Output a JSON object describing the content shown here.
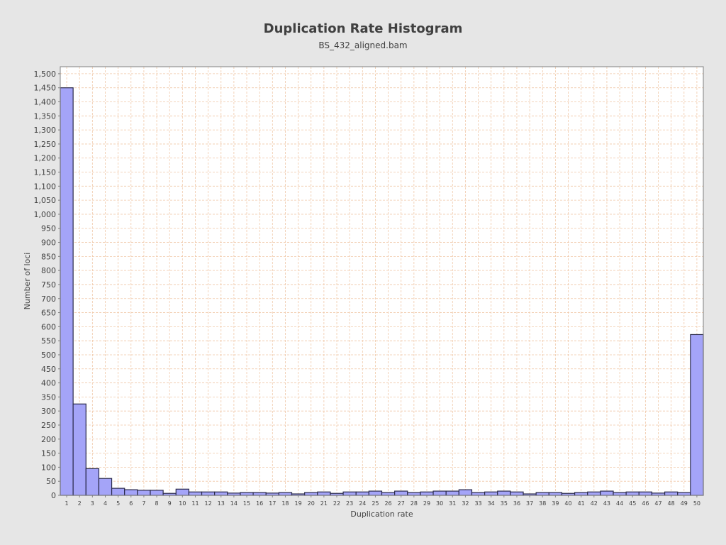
{
  "chart_data": {
    "type": "bar",
    "title": "Duplication Rate Histogram",
    "subtitle": "BS_432_aligned.bam",
    "xlabel": "Duplication rate",
    "ylabel": "Number of loci",
    "ylim": [
      0,
      1525
    ],
    "y_tick_step": 50,
    "grid": true,
    "colors": {
      "bar_fill": "#a4a4f8",
      "bar_stroke": "#2a2a4a",
      "grid": "#f0c8a8",
      "plot_background": "#ffffff",
      "page_background": "#e6e6e6"
    },
    "categories": [
      "1",
      "2",
      "3",
      "4",
      "5",
      "6",
      "7",
      "8",
      "9",
      "10",
      "11",
      "12",
      "13",
      "14",
      "15",
      "16",
      "17",
      "18",
      "19",
      "20",
      "21",
      "22",
      "23",
      "24",
      "25",
      "26",
      "27",
      "28",
      "29",
      "30",
      "31",
      "32",
      "33",
      "34",
      "35",
      "36",
      "37",
      "38",
      "39",
      "40",
      "41",
      "42",
      "43",
      "44",
      "45",
      "46",
      "47",
      "48",
      "49",
      "50"
    ],
    "values": [
      1450,
      325,
      95,
      60,
      25,
      20,
      18,
      18,
      7,
      22,
      12,
      12,
      12,
      8,
      10,
      10,
      8,
      10,
      5,
      10,
      12,
      7,
      12,
      12,
      15,
      10,
      15,
      10,
      12,
      15,
      15,
      20,
      10,
      12,
      15,
      12,
      5,
      10,
      10,
      7,
      10,
      12,
      15,
      10,
      12,
      12,
      8,
      12,
      10,
      572
    ]
  }
}
